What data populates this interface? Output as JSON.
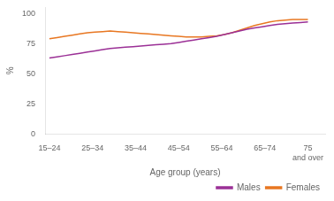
{
  "chart_data": {
    "type": "line",
    "xlabel": "Age group (years)",
    "ylabel": "%",
    "x": [
      0,
      0.17647058823529413,
      0.35294117647058826,
      0.5294117647058824,
      0.7058823529411765,
      0.8823529411764706,
      1.0588235294117647,
      1.2352941176470589,
      1.411764705882353,
      1.5882352941176472,
      1.7647058823529411,
      1.9411764705882353,
      2.1176470588235294,
      2.2941176470588234,
      2.4705882352941178,
      2.6470588235294117,
      2.823529411764706,
      3.0,
      3.176470588235294,
      3.3529411764705883,
      3.5294117647058822,
      3.7058823529411766,
      3.8823529411764706,
      4.0588235294117645,
      4.235294117647059,
      4.411764705882353,
      4.588235294117647,
      4.764705882352941,
      4.9411764705882355,
      5.117647058823529,
      5.294117647058823,
      5.470588235294118,
      5.647058823529412,
      5.823529411764706,
      6.0
    ],
    "series": [
      {
        "name": "Males",
        "color": "#9B3096",
        "values": [
          63,
          64,
          65,
          66,
          67,
          68,
          69,
          70,
          71,
          71.5,
          72,
          72.5,
          73,
          73.5,
          74,
          74.5,
          75,
          76,
          77,
          78,
          79,
          80,
          81,
          82.5,
          84,
          85.5,
          87,
          88,
          89,
          90,
          91,
          91.5,
          92,
          92.5,
          93
        ]
      },
      {
        "name": "Females",
        "color": "#E87722",
        "values": [
          79,
          80,
          81,
          82,
          83,
          84,
          84.5,
          85,
          85.5,
          85,
          84.5,
          84,
          83.5,
          83,
          82.5,
          82,
          81.5,
          81,
          80.5,
          80.5,
          80.5,
          81,
          81.5,
          82.5,
          84,
          86,
          88,
          90,
          91.5,
          93,
          94,
          94.5,
          95,
          95,
          95
        ]
      }
    ],
    "xlim": [
      -0.1,
      6.4
    ],
    "xticks": [
      {
        "value": 0,
        "label": "15–24"
      },
      {
        "value": 1,
        "label": "25–34"
      },
      {
        "value": 2,
        "label": "35–44"
      },
      {
        "value": 3,
        "label": "45–54"
      },
      {
        "value": 4,
        "label": "55–64"
      },
      {
        "value": 5,
        "label": "65–74"
      },
      {
        "value": 6,
        "label": "75\nand over"
      }
    ],
    "ylim": [
      0,
      105
    ],
    "yticks": [
      0,
      25,
      50,
      75,
      100
    ],
    "grid": false,
    "legend": "lower right"
  }
}
